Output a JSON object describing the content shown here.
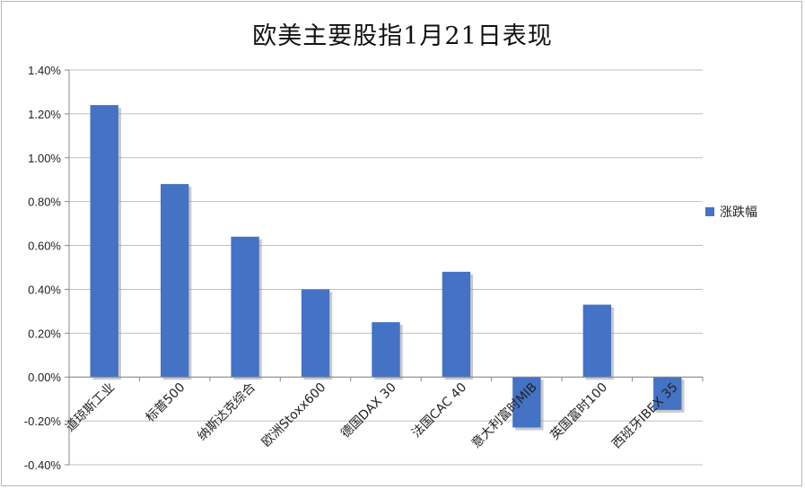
{
  "chart_data": {
    "type": "bar",
    "title": "欧美主要股指1月21日表现",
    "categories": [
      "道琼斯工业",
      "标普500",
      "纳斯达克综合",
      "欧洲Stoxx600",
      "德国DAX 30",
      "法国CAC 40",
      "意大利富时MIB",
      "英国富时100",
      "西班牙IBEX 35"
    ],
    "series": [
      {
        "name": "涨跌幅",
        "values": [
          1.24,
          0.88,
          0.64,
          0.4,
          0.25,
          0.48,
          -0.23,
          0.33,
          -0.15
        ]
      }
    ],
    "ylim": [
      -0.4,
      1.4
    ],
    "yticks": [
      "1.40%",
      "1.20%",
      "1.00%",
      "0.80%",
      "0.60%",
      "0.40%",
      "0.20%",
      "0.00%",
      "-0.20%",
      "-0.40%"
    ],
    "grid": true,
    "legend_position": "right",
    "bar_color": "#4472c4"
  }
}
